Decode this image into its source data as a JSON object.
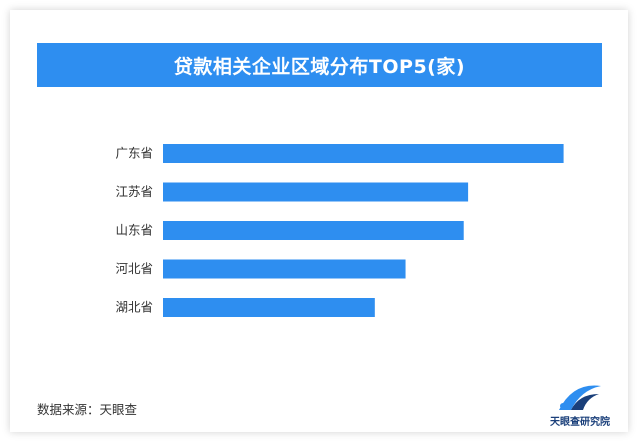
{
  "chart_data": {
    "type": "bar",
    "orientation": "horizontal",
    "title": "贷款相关企业区域分布TOP5(家)",
    "categories": [
      "广东省",
      "江苏省",
      "山东省",
      "河北省",
      "湖北省"
    ],
    "values": [
      365,
      278,
      274,
      221,
      193
    ],
    "xlim": [
      0,
      400
    ],
    "grid": false,
    "bar_color": "#2e8ef0"
  },
  "footer": {
    "source_text": "数据来源：天眼查",
    "logo_text": "天眼查研究院"
  },
  "colors": {
    "accent": "#2e8ef0",
    "logo_dark": "#1a3f7a"
  }
}
